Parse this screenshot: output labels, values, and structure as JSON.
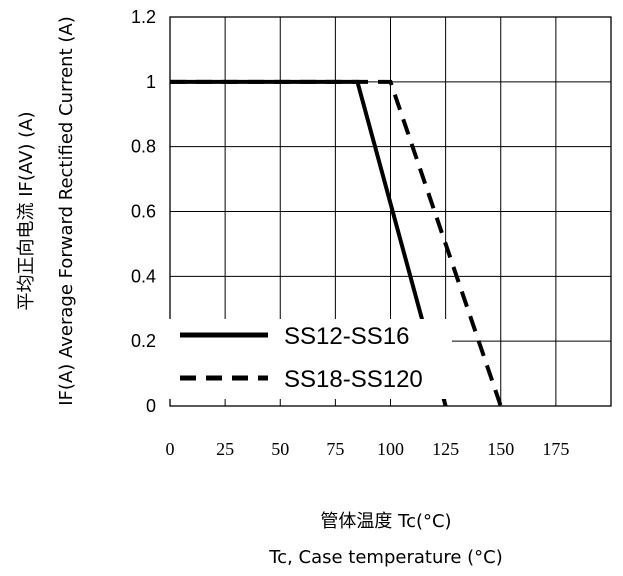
{
  "chart_data": {
    "type": "line",
    "xlabel_cn": "管体温度 Tc(°C)",
    "xlabel_en": "Tc, Case temperature (°C)",
    "ylabel_cn": "平均正向电流 IF(AV) (A)",
    "ylabel_en": "IF(A) Average Forward Rectified Current (A)",
    "xlim": [
      0,
      200
    ],
    "ylim": [
      0,
      1.2
    ],
    "x_ticks": [
      "0",
      "25",
      "50",
      "75",
      "100",
      "125",
      "150",
      "175"
    ],
    "y_ticks": [
      "0",
      "0.2",
      "0.4",
      "0.6",
      "0.8",
      "1",
      "1.2"
    ],
    "grid": true,
    "legend_position": "bottom-left",
    "series": [
      {
        "name": "SS12-SS16",
        "style": "solid",
        "color": "#000000",
        "x": [
          0,
          85,
          125
        ],
        "y": [
          1,
          1,
          0
        ]
      },
      {
        "name": "SS18-SS120",
        "style": "dashed",
        "color": "#000000",
        "x": [
          0,
          100,
          150
        ],
        "y": [
          1,
          1,
          0
        ]
      }
    ]
  }
}
